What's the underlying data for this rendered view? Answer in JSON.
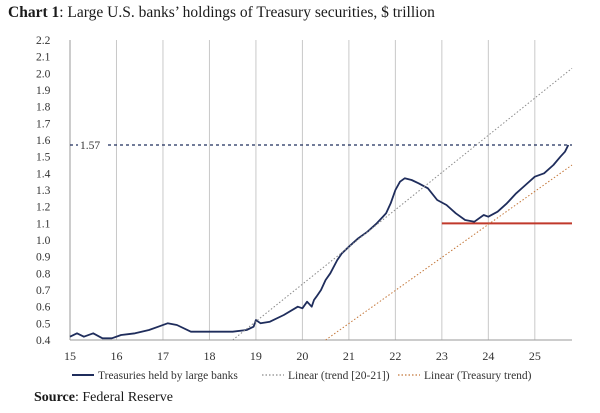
{
  "title": {
    "label": "Chart 1",
    "text": ": Large U.S. banks’ holdings of Treasury securities, $ trillion"
  },
  "source": {
    "label": "Source",
    "text": ": Federal Reserve"
  },
  "chart_data": {
    "type": "line",
    "title": "Chart 1: Large U.S. banks’ holdings of Treasury securities, $ trillion",
    "xlabel": "",
    "ylabel": "$ trillion",
    "xlim": [
      15,
      25.8
    ],
    "ylim": [
      0.4,
      2.2
    ],
    "yticks": [
      "0.4",
      "0.5",
      "0.6",
      "0.7",
      "0.8",
      "0.9",
      "1.0",
      "1.1",
      "1.2",
      "1.3",
      "1.4",
      "1.5",
      "1.6",
      "1.7",
      "1.8",
      "1.9",
      "2.0",
      "2.1",
      "2.2"
    ],
    "xticks": [
      "15",
      "16",
      "17",
      "18",
      "19",
      "20",
      "21",
      "22",
      "23",
      "24",
      "25"
    ],
    "grid": "vertical",
    "legend_position": "bottom",
    "series": [
      {
        "name": "Treasuries held by large banks",
        "style": "solid",
        "color": "#1f2d5c",
        "x": [
          15.0,
          15.15,
          15.3,
          15.5,
          15.7,
          15.9,
          16.1,
          16.4,
          16.7,
          16.9,
          17.1,
          17.3,
          17.6,
          17.9,
          18.2,
          18.5,
          18.8,
          18.95,
          19.0,
          19.1,
          19.3,
          19.6,
          19.9,
          20.0,
          20.1,
          20.2,
          20.25,
          20.3,
          20.4,
          20.5,
          20.6,
          20.75,
          20.85,
          21.0,
          21.2,
          21.4,
          21.6,
          21.8,
          21.9,
          22.0,
          22.1,
          22.2,
          22.35,
          22.5,
          22.7,
          22.9,
          23.1,
          23.3,
          23.5,
          23.7,
          23.9,
          24.0,
          24.2,
          24.4,
          24.6,
          24.8,
          25.0,
          25.2,
          25.4,
          25.55,
          25.65,
          25.72
        ],
        "y": [
          0.42,
          0.44,
          0.42,
          0.44,
          0.41,
          0.41,
          0.43,
          0.44,
          0.46,
          0.48,
          0.5,
          0.49,
          0.45,
          0.45,
          0.45,
          0.45,
          0.46,
          0.48,
          0.52,
          0.5,
          0.51,
          0.55,
          0.6,
          0.59,
          0.63,
          0.6,
          0.64,
          0.66,
          0.7,
          0.76,
          0.8,
          0.88,
          0.92,
          0.96,
          1.01,
          1.05,
          1.1,
          1.16,
          1.22,
          1.3,
          1.35,
          1.37,
          1.36,
          1.34,
          1.31,
          1.24,
          1.21,
          1.16,
          1.12,
          1.11,
          1.15,
          1.14,
          1.17,
          1.22,
          1.28,
          1.33,
          1.38,
          1.4,
          1.45,
          1.5,
          1.53,
          1.57
        ]
      },
      {
        "name": "Linear (trend [20-21])",
        "style": "dotted",
        "color": "#8a8a8a",
        "x": [
          18.5,
          25.8
        ],
        "y": [
          0.4,
          2.03
        ]
      },
      {
        "name": "Linear (Treasury trend)",
        "style": "dotted",
        "color": "#c4773a",
        "x": [
          20.5,
          25.8
        ],
        "y": [
          0.4,
          1.45
        ]
      }
    ],
    "reference_lines": [
      {
        "label": "1.57",
        "y": 1.57,
        "x_from": 15.0,
        "x_to": 25.8,
        "style": "dashed",
        "color": "#1f2d5c"
      },
      {
        "label": "",
        "y": 1.1,
        "x_from": 23.0,
        "x_to": 25.8,
        "style": "solid",
        "color": "#c0392b"
      }
    ]
  }
}
